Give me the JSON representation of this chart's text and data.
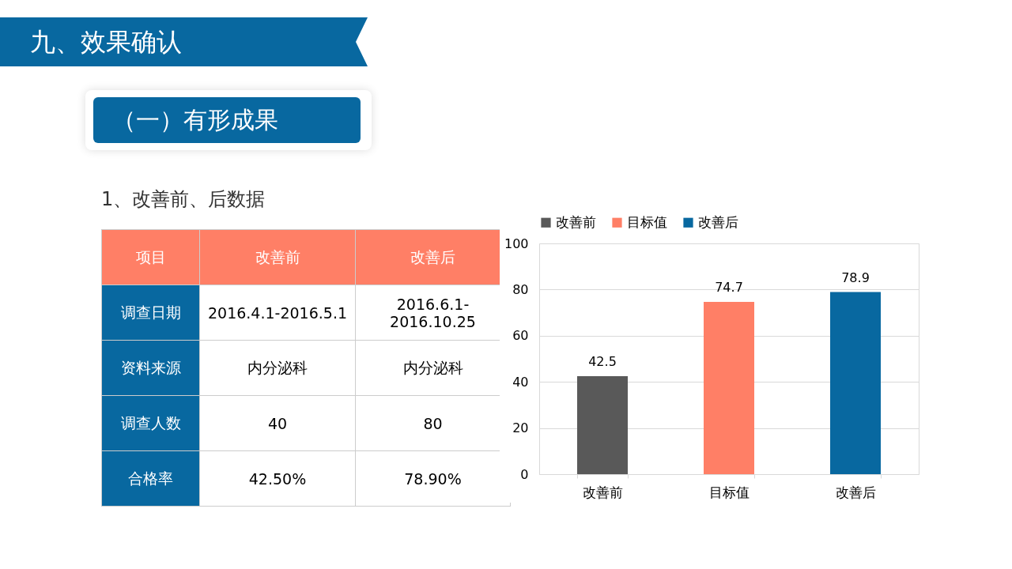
{
  "chart_data": [
    {
      "type": "other",
      "title": "九、效果确认",
      "subtitle": "（一）有形成果",
      "annotations": [
        "1、改善前、后数据",
        "项目",
        "改善前",
        "改善后",
        "调查日期",
        "2016.4.1-2016.5.1",
        "2016.6.1-2016.10.25",
        "资料来源",
        "内分泌科",
        "内分泌科",
        "调查人数",
        "40",
        "80",
        "合格率",
        "42.50%",
        "78.90%"
      ]
    },
    {
      "type": "bar",
      "categories": [
        "改善前",
        "目标值",
        "改善后"
      ],
      "series": [
        {
          "name": "改善前",
          "color": "#595959",
          "values": [
            42.5,
            null,
            null
          ]
        },
        {
          "name": "目标值",
          "color": "#ff7f66",
          "values": [
            null,
            74.7,
            null
          ]
        },
        {
          "name": "改善后",
          "color": "#0868a0",
          "values": [
            null,
            null,
            78.9
          ]
        }
      ],
      "ylim": [
        0,
        100
      ],
      "yticks": [
        0,
        20,
        40,
        60,
        80,
        100
      ],
      "grid": "y",
      "data_labels": true,
      "legend": "top"
    }
  ]
}
